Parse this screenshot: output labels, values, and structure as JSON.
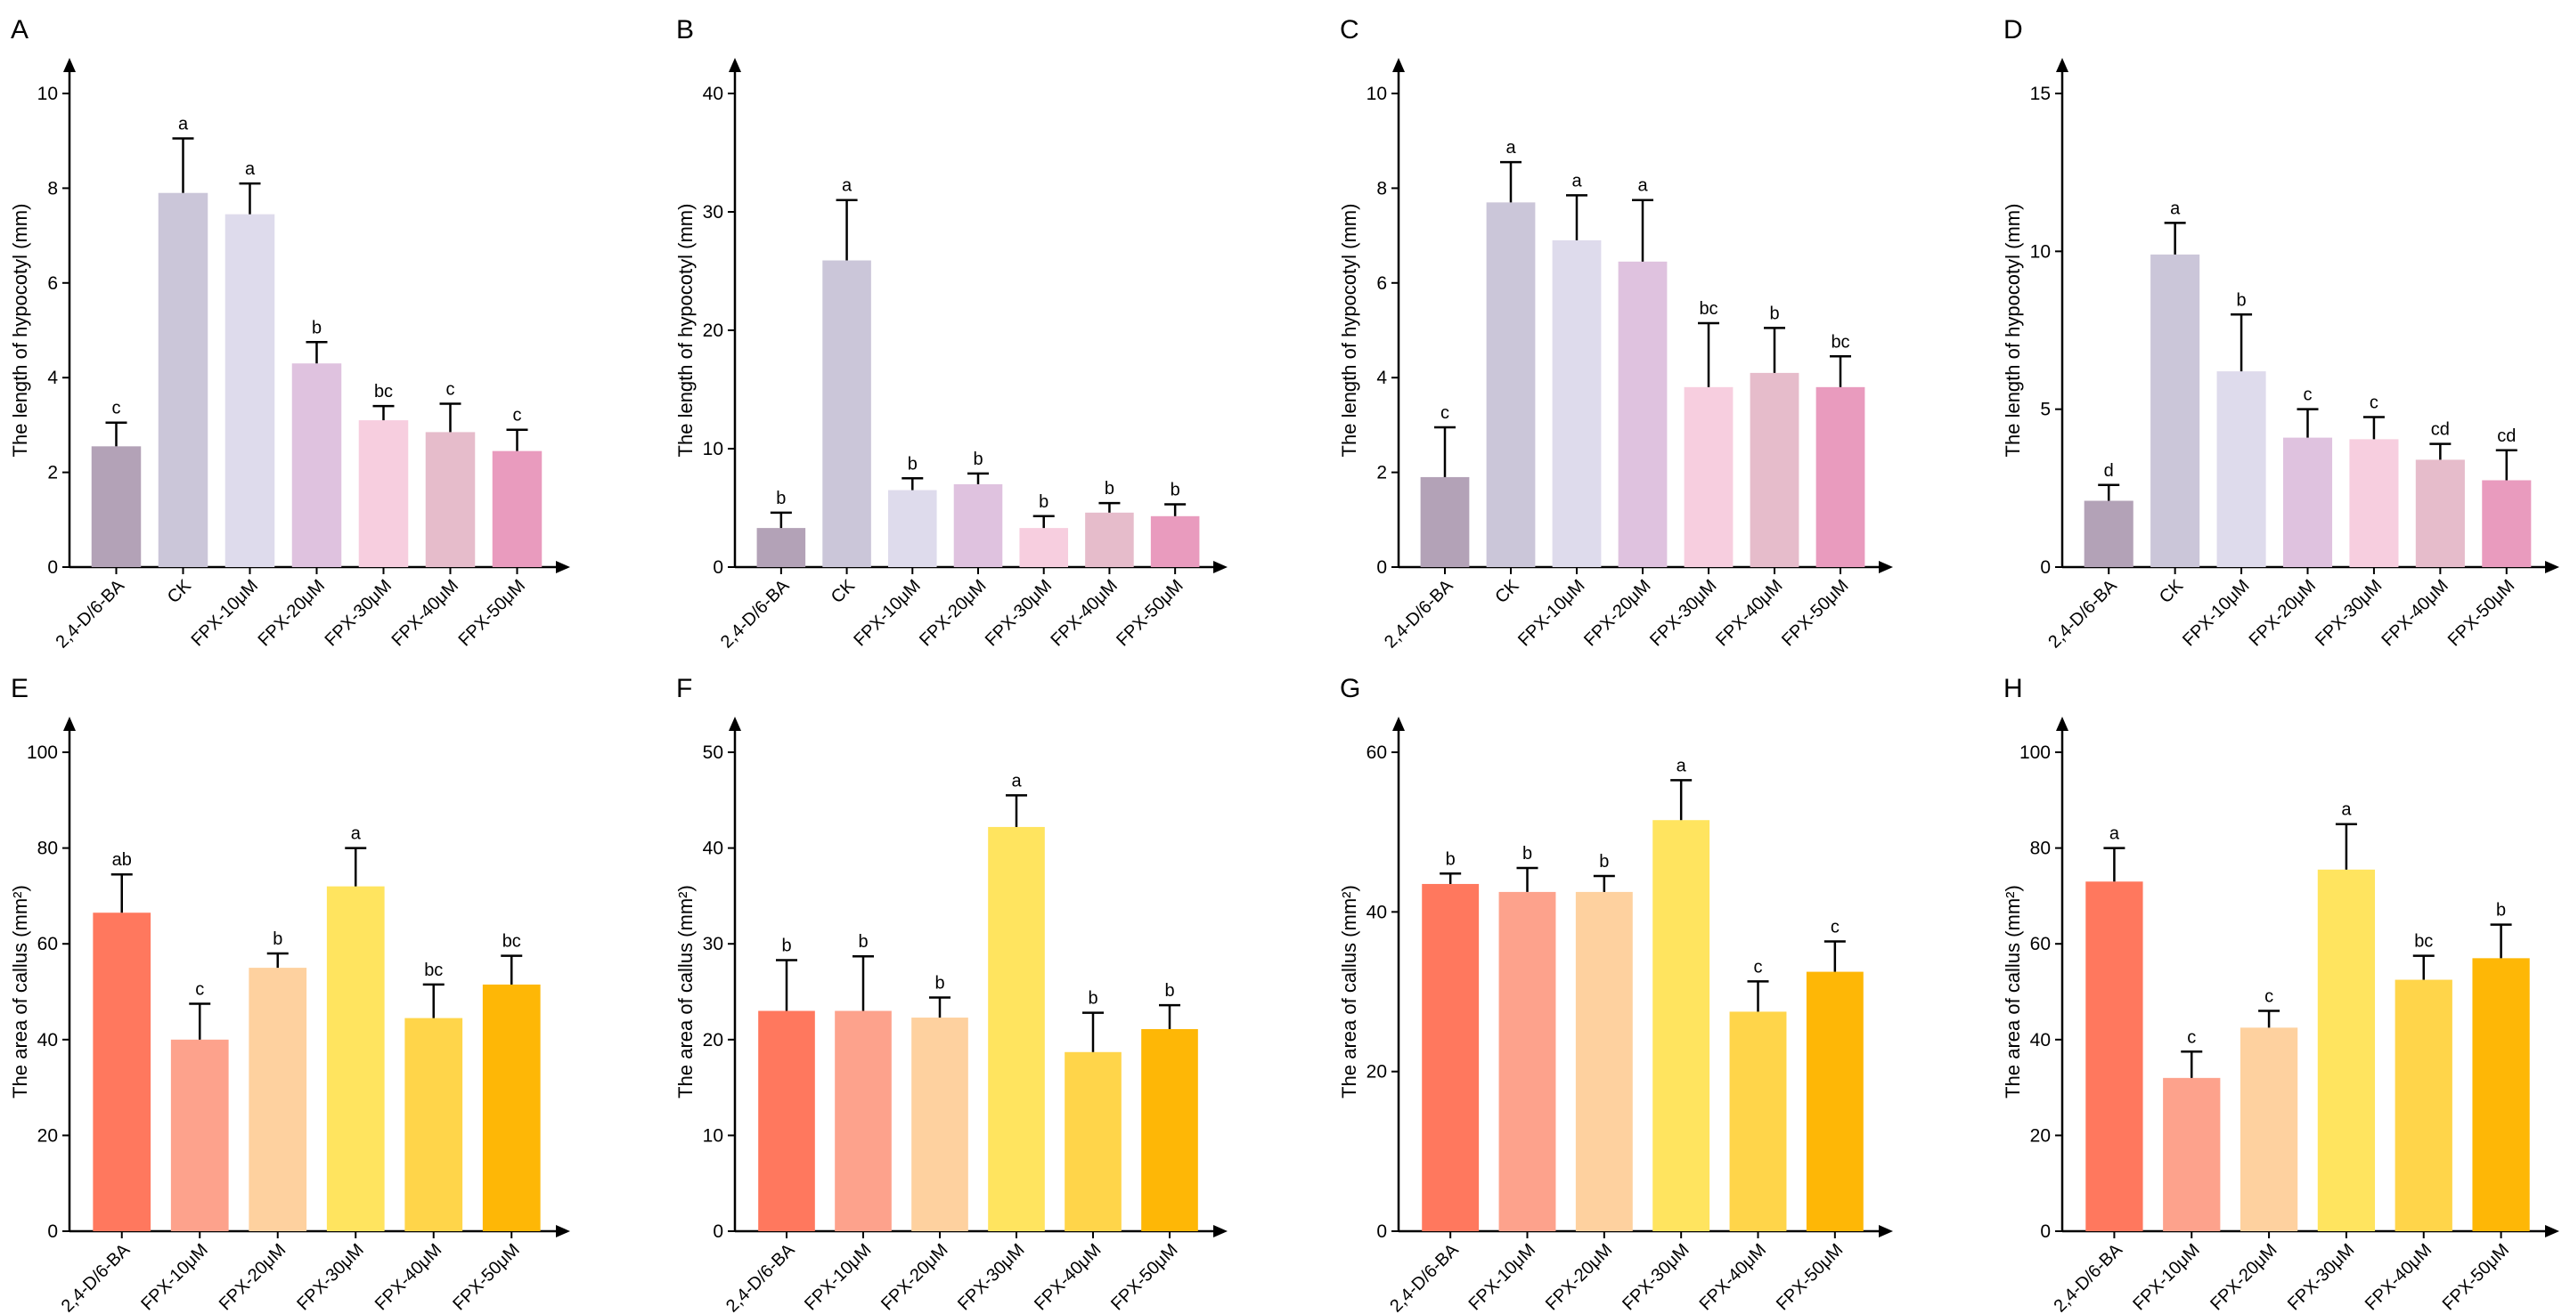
{
  "colors": {
    "hypocotyl": [
      "#b3a2b7",
      "#cbc6d9",
      "#dedbec",
      "#dfc2df",
      "#f7cedf",
      "#e6bccb",
      "#e99bbe"
    ],
    "callus": [
      "#ff785e",
      "#fda28c",
      "#fed19f",
      "#ffe45f",
      "#ffd54a",
      "#feb706"
    ],
    "first_label": "#3a3270",
    "axis": "#000000"
  },
  "chart_data": [
    {
      "panel": "A",
      "type": "bar",
      "ylabel": "The length of  hypocotyl (mm)",
      "ylim": [
        0,
        10
      ],
      "yticks": [
        "0",
        "2",
        "4",
        "6",
        "8",
        "10"
      ],
      "categories": [
        "2,4-D/6-BA",
        "CK",
        "FPX-10μM",
        "FPX-20μM",
        "FPX-30μM",
        "FPX-40μM",
        "FPX-50μM"
      ],
      "values": [
        2.55,
        7.9,
        7.45,
        4.3,
        3.1,
        2.85,
        2.45
      ],
      "errors": [
        0.5,
        1.15,
        0.65,
        0.45,
        0.3,
        0.6,
        0.45
      ],
      "letters": [
        "c",
        "a",
        "a",
        "b",
        "bc",
        "c",
        "c"
      ]
    },
    {
      "panel": "B",
      "type": "bar",
      "ylabel": "The length of  hypocotyl (mm)",
      "ylim": [
        0,
        40
      ],
      "yticks": [
        "0",
        "10",
        "20",
        "30",
        "40"
      ],
      "categories": [
        "2,4-D/6-BA",
        "CK",
        "FPX-10μM",
        "FPX-20μM",
        "FPX-30μM",
        "FPX-40μM",
        "FPX-50μM"
      ],
      "values": [
        3.3,
        25.9,
        6.5,
        7.0,
        3.3,
        4.6,
        4.3
      ],
      "errors": [
        1.3,
        5.1,
        1.0,
        0.9,
        1.0,
        0.8,
        1.0
      ],
      "letters": [
        "b",
        "a",
        "b",
        "b",
        "b",
        "b",
        "b"
      ]
    },
    {
      "panel": "C",
      "type": "bar",
      "ylabel": "The length of  hypocotyl (mm)",
      "ylim": [
        0,
        10
      ],
      "yticks": [
        "0",
        "2",
        "4",
        "6",
        "8",
        "10"
      ],
      "categories": [
        "2,4-D/6-BA",
        "CK",
        "FPX-10μM",
        "FPX-20μM",
        "FPX-30μM",
        "FPX-40μM",
        "FPX-50μM"
      ],
      "values": [
        1.9,
        7.7,
        6.9,
        6.45,
        3.8,
        4.1,
        3.8
      ],
      "errors": [
        1.05,
        0.85,
        0.95,
        1.3,
        1.35,
        0.95,
        0.65
      ],
      "letters": [
        "c",
        "a",
        "a",
        "a",
        "bc",
        "b",
        "bc"
      ]
    },
    {
      "panel": "D",
      "type": "bar",
      "ylabel": "The length of  hypocotyl (mm)",
      "ylim": [
        0,
        15
      ],
      "yticks": [
        "0",
        "5",
        "10",
        "15"
      ],
      "categories": [
        "2,4-D/6-BA",
        "CK",
        "FPX-10μM",
        "FPX-20μM",
        "FPX-30μM",
        "FPX-40μM",
        "FPX-50μM"
      ],
      "values": [
        2.1,
        9.9,
        6.2,
        4.1,
        4.05,
        3.4,
        2.75
      ],
      "errors": [
        0.5,
        1.0,
        1.8,
        0.9,
        0.7,
        0.5,
        0.95
      ],
      "letters": [
        "d",
        "a",
        "b",
        "c",
        "c",
        "cd",
        "cd"
      ]
    },
    {
      "panel": "E",
      "type": "bar",
      "ylabel": "The area of callus (mm²)",
      "ylim": [
        0,
        100
      ],
      "yticks": [
        "0",
        "20",
        "40",
        "60",
        "80",
        "100"
      ],
      "categories": [
        "2,4-D/6-BA",
        "FPX-10μM",
        "FPX-20μM",
        "FPX-30μM",
        "FPX-40μM",
        "FPX-50μM"
      ],
      "values": [
        66.5,
        40,
        55,
        72,
        44.5,
        51.5
      ],
      "errors": [
        8,
        7.5,
        3,
        8,
        7,
        6
      ],
      "letters": [
        "ab",
        "c",
        "b",
        "a",
        "bc",
        "bc"
      ]
    },
    {
      "panel": "F",
      "type": "bar",
      "ylabel": "The area of callus (mm²)",
      "ylim": [
        0,
        50
      ],
      "yticks": [
        "0",
        "10",
        "20",
        "30",
        "40",
        "50"
      ],
      "categories": [
        "2,4-D/6-BA",
        "FPX-10μM",
        "FPX-20μM",
        "FPX-30μM",
        "FPX-40μM",
        "FPX-50μM"
      ],
      "values": [
        23,
        23,
        22.3,
        42.2,
        18.7,
        21.1
      ],
      "errors": [
        5.3,
        5.7,
        2.1,
        3.3,
        4.1,
        2.5
      ],
      "letters": [
        "b",
        "b",
        "b",
        "a",
        "b",
        "b"
      ]
    },
    {
      "panel": "G",
      "type": "bar",
      "ylabel": "The area of callus (mm²)",
      "ylim": [
        0,
        60
      ],
      "yticks": [
        "0",
        "20",
        "40",
        "60"
      ],
      "categories": [
        "2,4-D/6-BA",
        "FPX-10μM",
        "FPX-20μM",
        "FPX-30μM",
        "FPX-40μM",
        "FPX-50μM"
      ],
      "values": [
        43.5,
        42.5,
        42.5,
        51.5,
        27.5,
        32.5
      ],
      "errors": [
        1.3,
        3,
        2,
        5,
        3.8,
        3.8
      ],
      "letters": [
        "b",
        "b",
        "b",
        "a",
        "c",
        "c"
      ]
    },
    {
      "panel": "H",
      "type": "bar",
      "ylabel": "The area of callus (mm²)",
      "ylim": [
        0,
        100
      ],
      "yticks": [
        "0",
        "20",
        "40",
        "60",
        "80",
        "100"
      ],
      "categories": [
        "2,4-D/6-BA",
        "FPX-10μM",
        "FPX-20μM",
        "FPX-30μM",
        "FPX-40μM",
        "FPX-50μM"
      ],
      "values": [
        73,
        32,
        42.5,
        75.5,
        52.5,
        57
      ],
      "errors": [
        7,
        5.5,
        3.5,
        9.5,
        5,
        7
      ],
      "letters": [
        "a",
        "c",
        "c",
        "a",
        "bc",
        "b"
      ]
    }
  ]
}
